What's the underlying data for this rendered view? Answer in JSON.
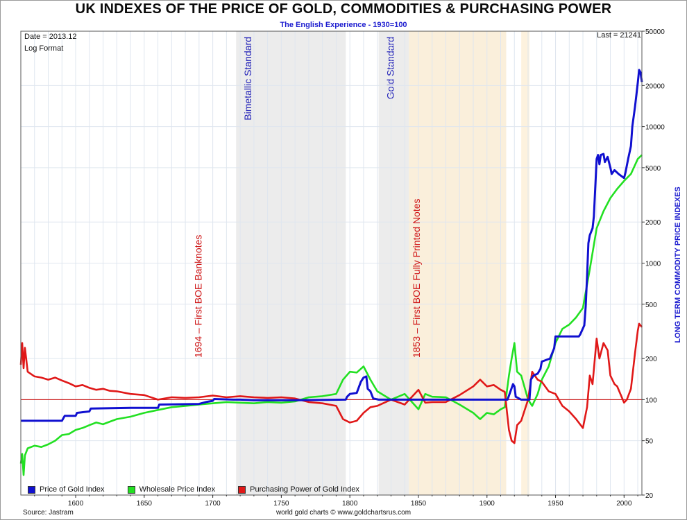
{
  "header": {
    "title": "UK INDEXES OF THE PRICE OF GOLD, COMMODITIES & PURCHASING POWER",
    "subtitle": "The English Experience - 1930=100"
  },
  "info": {
    "date": "Date = 2013.12",
    "format": "Log Format",
    "last": "Last = 21241"
  },
  "footer": {
    "source": "Source: Jastram",
    "credit": "world gold charts © www.goldchartsrus.com"
  },
  "colors": {
    "gold": "#1010d0",
    "wholesale": "#22e022",
    "purchasing": "#e01818",
    "ref_line": "#c80000",
    "standard_band": "#ececec",
    "war_band": "#fdf0d8"
  },
  "chart_data": {
    "type": "line",
    "title": "UK INDEXES OF THE PRICE OF GOLD, COMMODITIES & PURCHASING POWER",
    "subtitle": "The English Experience - 1930=100",
    "ylabel": "LONG TERM COMMODITY PRICE INDEXES",
    "xlabel": "",
    "y_scale": "log",
    "xlim": [
      1560,
      2013
    ],
    "ylim": [
      20,
      50000
    ],
    "x_ticks": [
      1600,
      1650,
      1700,
      1750,
      1800,
      1850,
      1900,
      1950,
      2000
    ],
    "y_ticks": [
      20,
      50,
      100,
      200,
      500,
      1000,
      2000,
      5000,
      10000,
      20000,
      50000
    ],
    "grid": true,
    "legend_position": "bottom-left",
    "reference_line": 100,
    "shaded_regions": [
      {
        "from": 1717,
        "to": 1797,
        "label": "Bimetallic Standard",
        "kind": "standard"
      },
      {
        "from": 1821,
        "to": 1914,
        "label": "Gold Standard",
        "kind": "standard"
      },
      {
        "from": 1843,
        "to": 1914,
        "label": "",
        "kind": "war"
      },
      {
        "from": 1925,
        "to": 1931,
        "label": "",
        "kind": "war"
      }
    ],
    "annotations": [
      {
        "x": 1694,
        "y": 250,
        "text": "1694 – First BOE Banknotes"
      },
      {
        "x": 1853,
        "y": 250,
        "text": "1853 – First BOE Fully Printed Notes"
      }
    ],
    "series": [
      {
        "name": "Price of Gold Index",
        "points": [
          [
            1560,
            70
          ],
          [
            1580,
            70
          ],
          [
            1590,
            70
          ],
          [
            1592,
            76
          ],
          [
            1600,
            76
          ],
          [
            1601,
            80
          ],
          [
            1610,
            82
          ],
          [
            1611,
            86
          ],
          [
            1640,
            87
          ],
          [
            1660,
            87
          ],
          [
            1661,
            92
          ],
          [
            1690,
            93
          ],
          [
            1695,
            96
          ],
          [
            1700,
            98
          ],
          [
            1701,
            101
          ],
          [
            1715,
            100
          ],
          [
            1720,
            100
          ],
          [
            1730,
            99
          ],
          [
            1760,
            99
          ],
          [
            1797,
            100
          ],
          [
            1798,
            105
          ],
          [
            1800,
            110
          ],
          [
            1805,
            112
          ],
          [
            1808,
            135
          ],
          [
            1810,
            145
          ],
          [
            1812,
            148
          ],
          [
            1813,
            120
          ],
          [
            1815,
            115
          ],
          [
            1817,
            102
          ],
          [
            1821,
            100
          ],
          [
            1900,
            100
          ],
          [
            1914,
            100
          ],
          [
            1915,
            100
          ],
          [
            1919,
            130
          ],
          [
            1920,
            125
          ],
          [
            1921,
            105
          ],
          [
            1925,
            100
          ],
          [
            1931,
            100
          ],
          [
            1932,
            140
          ],
          [
            1934,
            150
          ],
          [
            1937,
            155
          ],
          [
            1939,
            168
          ],
          [
            1940,
            190
          ],
          [
            1946,
            200
          ],
          [
            1949,
            238
          ],
          [
            1950,
            290
          ],
          [
            1967,
            290
          ],
          [
            1968,
            300
          ],
          [
            1971,
            350
          ],
          [
            1972,
            480
          ],
          [
            1973,
            800
          ],
          [
            1974,
            1400
          ],
          [
            1975,
            1600
          ],
          [
            1977,
            1800
          ],
          [
            1978,
            2200
          ],
          [
            1980,
            5800
          ],
          [
            1981,
            6200
          ],
          [
            1982,
            5300
          ],
          [
            1983,
            6200
          ],
          [
            1985,
            6300
          ],
          [
            1986,
            5500
          ],
          [
            1988,
            6000
          ],
          [
            1990,
            5000
          ],
          [
            1991,
            4500
          ],
          [
            1993,
            4800
          ],
          [
            1996,
            4500
          ],
          [
            2000,
            4200
          ],
          [
            2001,
            4600
          ],
          [
            2003,
            5800
          ],
          [
            2005,
            7200
          ],
          [
            2006,
            10000
          ],
          [
            2008,
            14000
          ],
          [
            2010,
            21000
          ],
          [
            2011,
            26000
          ],
          [
            2012,
            25000
          ],
          [
            2013,
            21241
          ]
        ]
      },
      {
        "name": "Wholesale Price Index",
        "points": [
          [
            1560,
            34
          ],
          [
            1561,
            40
          ],
          [
            1562,
            28
          ],
          [
            1563,
            39
          ],
          [
            1565,
            44
          ],
          [
            1570,
            46
          ],
          [
            1575,
            45
          ],
          [
            1580,
            47
          ],
          [
            1585,
            50
          ],
          [
            1590,
            55
          ],
          [
            1595,
            56
          ],
          [
            1600,
            60
          ],
          [
            1605,
            62
          ],
          [
            1610,
            65
          ],
          [
            1615,
            68
          ],
          [
            1620,
            66
          ],
          [
            1625,
            69
          ],
          [
            1630,
            72
          ],
          [
            1640,
            75
          ],
          [
            1650,
            80
          ],
          [
            1660,
            84
          ],
          [
            1670,
            88
          ],
          [
            1680,
            90
          ],
          [
            1690,
            92
          ],
          [
            1700,
            94
          ],
          [
            1710,
            96
          ],
          [
            1720,
            95
          ],
          [
            1730,
            94
          ],
          [
            1740,
            96
          ],
          [
            1750,
            95
          ],
          [
            1760,
            97
          ],
          [
            1770,
            104
          ],
          [
            1780,
            106
          ],
          [
            1790,
            110
          ],
          [
            1795,
            140
          ],
          [
            1800,
            160
          ],
          [
            1805,
            158
          ],
          [
            1810,
            175
          ],
          [
            1815,
            140
          ],
          [
            1820,
            115
          ],
          [
            1830,
            100
          ],
          [
            1840,
            110
          ],
          [
            1850,
            85
          ],
          [
            1855,
            110
          ],
          [
            1860,
            105
          ],
          [
            1870,
            104
          ],
          [
            1880,
            92
          ],
          [
            1890,
            80
          ],
          [
            1895,
            72
          ],
          [
            1900,
            80
          ],
          [
            1905,
            78
          ],
          [
            1910,
            85
          ],
          [
            1913,
            88
          ],
          [
            1916,
            150
          ],
          [
            1918,
            200
          ],
          [
            1920,
            260
          ],
          [
            1922,
            160
          ],
          [
            1925,
            150
          ],
          [
            1930,
            100
          ],
          [
            1933,
            90
          ],
          [
            1937,
            110
          ],
          [
            1940,
            140
          ],
          [
            1945,
            175
          ],
          [
            1950,
            260
          ],
          [
            1955,
            330
          ],
          [
            1960,
            355
          ],
          [
            1965,
            400
          ],
          [
            1970,
            470
          ],
          [
            1975,
            900
          ],
          [
            1980,
            1800
          ],
          [
            1985,
            2400
          ],
          [
            1990,
            3000
          ],
          [
            1995,
            3500
          ],
          [
            2000,
            4000
          ],
          [
            2005,
            4500
          ],
          [
            2010,
            5800
          ],
          [
            2013,
            6200
          ]
        ]
      },
      {
        "name": "Purchasing Power of Gold Index",
        "points": [
          [
            1560,
            180
          ],
          [
            1561,
            260
          ],
          [
            1562,
            170
          ],
          [
            1563,
            240
          ],
          [
            1565,
            160
          ],
          [
            1570,
            148
          ],
          [
            1575,
            145
          ],
          [
            1580,
            140
          ],
          [
            1585,
            145
          ],
          [
            1590,
            138
          ],
          [
            1595,
            132
          ],
          [
            1600,
            125
          ],
          [
            1605,
            128
          ],
          [
            1610,
            122
          ],
          [
            1615,
            118
          ],
          [
            1620,
            120
          ],
          [
            1625,
            116
          ],
          [
            1630,
            115
          ],
          [
            1640,
            110
          ],
          [
            1650,
            108
          ],
          [
            1660,
            100
          ],
          [
            1670,
            104
          ],
          [
            1680,
            103
          ],
          [
            1690,
            104
          ],
          [
            1700,
            107
          ],
          [
            1710,
            104
          ],
          [
            1720,
            106
          ],
          [
            1730,
            104
          ],
          [
            1740,
            103
          ],
          [
            1750,
            104
          ],
          [
            1760,
            102
          ],
          [
            1770,
            96
          ],
          [
            1780,
            94
          ],
          [
            1790,
            90
          ],
          [
            1795,
            72
          ],
          [
            1800,
            68
          ],
          [
            1805,
            70
          ],
          [
            1810,
            80
          ],
          [
            1815,
            88
          ],
          [
            1820,
            90
          ],
          [
            1830,
            100
          ],
          [
            1840,
            92
          ],
          [
            1850,
            118
          ],
          [
            1855,
            95
          ],
          [
            1860,
            96
          ],
          [
            1870,
            96
          ],
          [
            1880,
            108
          ],
          [
            1890,
            125
          ],
          [
            1895,
            140
          ],
          [
            1900,
            125
          ],
          [
            1905,
            128
          ],
          [
            1910,
            118
          ],
          [
            1913,
            114
          ],
          [
            1916,
            60
          ],
          [
            1918,
            50
          ],
          [
            1920,
            48
          ],
          [
            1922,
            65
          ],
          [
            1925,
            70
          ],
          [
            1930,
            100
          ],
          [
            1933,
            160
          ],
          [
            1937,
            140
          ],
          [
            1940,
            135
          ],
          [
            1945,
            115
          ],
          [
            1950,
            110
          ],
          [
            1955,
            90
          ],
          [
            1960,
            82
          ],
          [
            1965,
            72
          ],
          [
            1970,
            62
          ],
          [
            1973,
            88
          ],
          [
            1975,
            150
          ],
          [
            1977,
            130
          ],
          [
            1980,
            280
          ],
          [
            1982,
            200
          ],
          [
            1985,
            260
          ],
          [
            1988,
            230
          ],
          [
            1990,
            150
          ],
          [
            1993,
            130
          ],
          [
            1995,
            125
          ],
          [
            2000,
            95
          ],
          [
            2002,
            100
          ],
          [
            2005,
            120
          ],
          [
            2008,
            220
          ],
          [
            2010,
            320
          ],
          [
            2011,
            360
          ],
          [
            2012,
            350
          ],
          [
            2013,
            340
          ]
        ]
      }
    ]
  }
}
